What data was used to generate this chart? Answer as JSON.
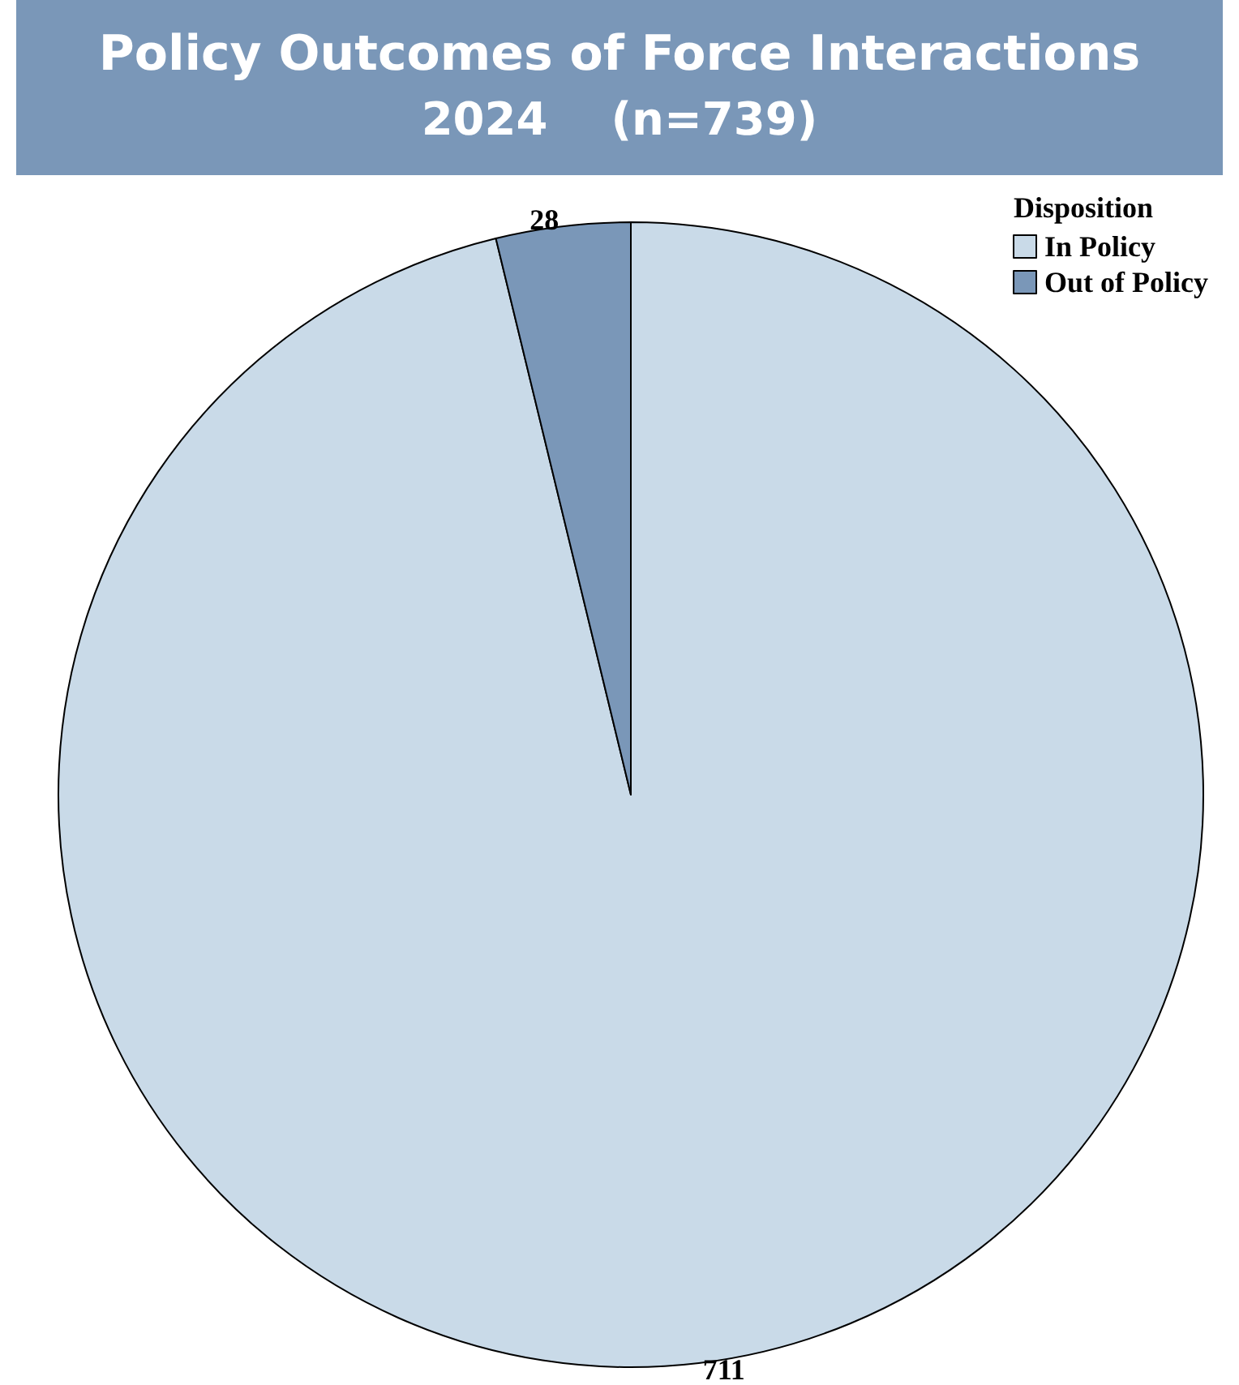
{
  "chart_data": {
    "type": "pie",
    "title": "Policy Outcomes of Force Interactions",
    "subtitle": "2024    (n=739)",
    "categories": [
      "In Policy",
      "Out of Policy"
    ],
    "values": [
      711,
      28
    ],
    "colors": [
      "#c9dae8",
      "#7a97b8"
    ],
    "legend_title": "Disposition",
    "legend": "top right",
    "data_labels": true
  }
}
